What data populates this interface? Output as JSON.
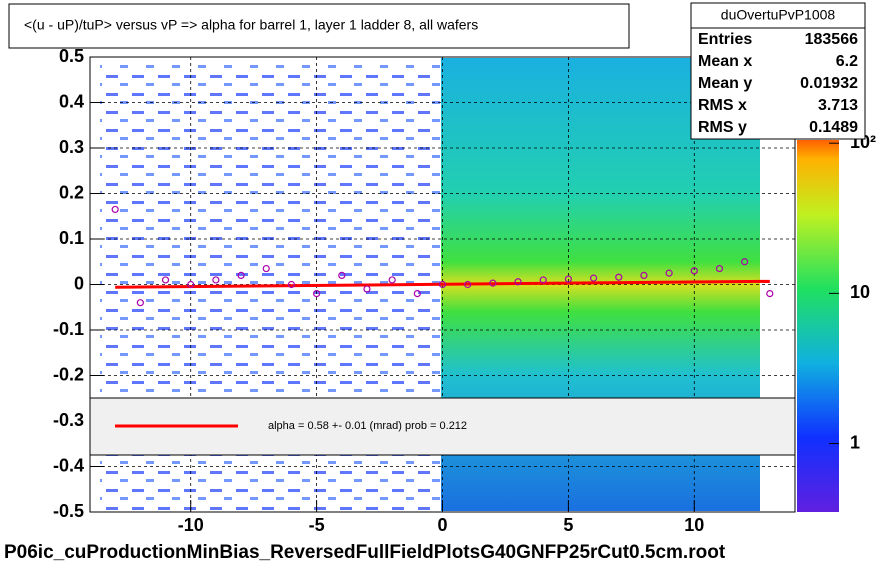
{
  "chart_data": {
    "type": "scatter",
    "title": "<(u - uP)/tuP> versus   vP => alpha for barrel 1, layer 1 ladder 8, all wafers",
    "footer": "P06ic_cuProductionMinBias_ReversedFullFieldPlotsG40GNFP25rCut0.5cm.root",
    "xlim": [
      -14,
      14
    ],
    "ylim": [
      -0.5,
      0.5
    ],
    "xticks": [
      -10,
      -5,
      0,
      5,
      10
    ],
    "yticks": [
      -0.5,
      -0.4,
      -0.3,
      -0.2,
      -0.1,
      0,
      0.1,
      0.2,
      0.3,
      0.4,
      0.5
    ],
    "grid": true,
    "log_scale_z": true,
    "zlim": [
      0.35,
      105
    ],
    "zticks": [
      1,
      10,
      {
        "value": 100,
        "label": "10²"
      }
    ],
    "series": [
      {
        "name": "profile",
        "color": "#aa00aa",
        "x": [
          -13,
          -12,
          -11,
          -10,
          -9,
          -8,
          -7,
          -6,
          -5,
          -4,
          -3,
          -2,
          -1,
          0,
          1,
          2,
          3,
          4,
          5,
          6,
          7,
          8,
          9,
          10,
          11,
          12,
          13
        ],
        "values": [
          0.165,
          -0.04,
          0.01,
          0.0,
          0.01,
          0.02,
          0.035,
          0.0,
          -0.02,
          0.02,
          -0.01,
          0.01,
          -0.02,
          0.0,
          0.0,
          0.003,
          0.006,
          0.01,
          0.012,
          0.014,
          0.016,
          0.02,
          0.025,
          0.03,
          0.035,
          0.05,
          -0.02
        ]
      }
    ],
    "fit": {
      "color": "#ff0000",
      "x": [
        -13,
        13
      ],
      "values": [
        -0.006,
        0.007
      ],
      "legend": "alpha =    0.58 +-  0.01 (mrad) prob = 0.212"
    },
    "stats": {
      "title": "duOvertuPvP1008",
      "rows": [
        [
          "Entries",
          183566
        ],
        [
          "Mean x",
          6.2
        ],
        [
          "Mean y",
          0.01932
        ],
        [
          "RMS x",
          3.713
        ],
        [
          "RMS y",
          0.1489
        ]
      ]
    }
  }
}
